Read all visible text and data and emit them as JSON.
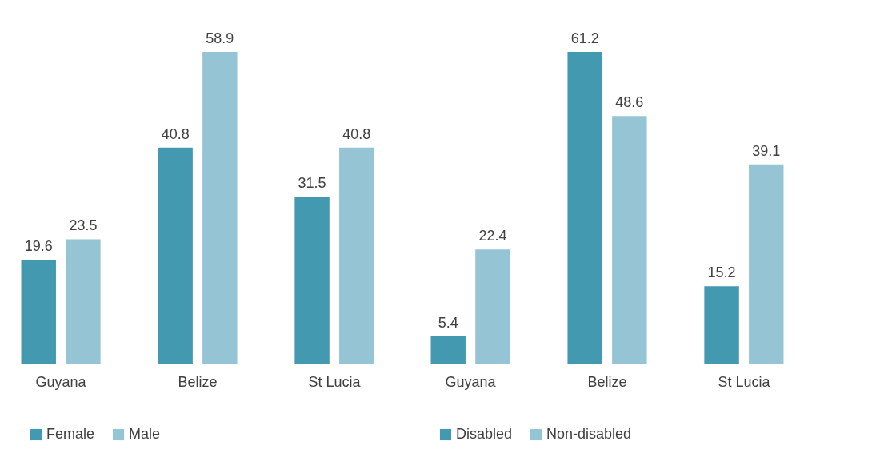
{
  "chart_data": [
    {
      "type": "bar",
      "categories": [
        "Guyana",
        "Belize",
        "St Lucia"
      ],
      "data_labels": true,
      "legend": "bottom",
      "series": [
        {
          "name": "Female",
          "color": "#4399b0",
          "values": [
            19.6,
            40.8,
            31.5
          ]
        },
        {
          "name": "Male",
          "color": "#95c4d4",
          "values": [
            23.5,
            58.9,
            40.8
          ]
        }
      ]
    },
    {
      "type": "bar",
      "categories": [
        "Guyana",
        "Belize",
        "St Lucia"
      ],
      "data_labels": true,
      "legend": "bottom",
      "series": [
        {
          "name": "Disabled",
          "color": "#4399b0",
          "values": [
            5.4,
            61.2,
            15.2
          ]
        },
        {
          "name": "Non-disabled",
          "color": "#95c4d4",
          "values": [
            22.4,
            48.6,
            39.1
          ]
        }
      ]
    }
  ]
}
